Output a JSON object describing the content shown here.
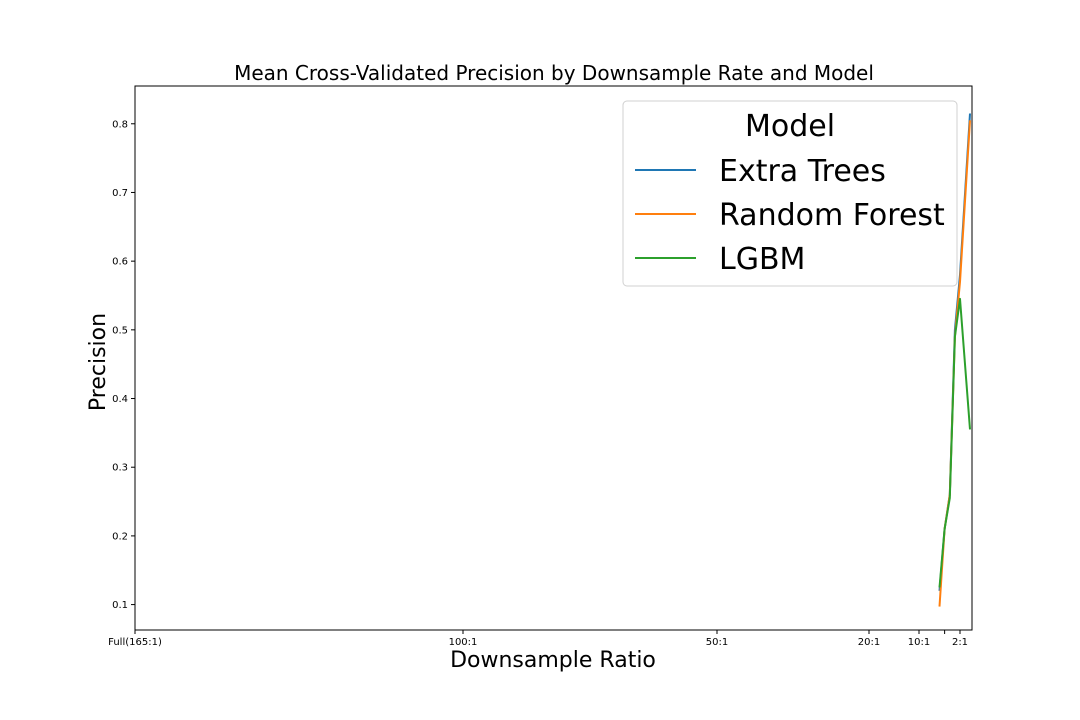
{
  "chart_data": {
    "type": "line",
    "title": "Mean Cross-Validated Precision by Downsample Rate and Model",
    "xlabel": "Downsample Ratio",
    "ylabel": "Precision",
    "xlim": [
      165,
      1
    ],
    "ylim": [
      0.063,
      0.855
    ],
    "x_ticks": [
      {
        "value": 165,
        "label": "Full(165:1)"
      },
      {
        "value": 100,
        "label": "100:1"
      },
      {
        "value": 50,
        "label": "50:1"
      },
      {
        "value": 20,
        "label": "20:1"
      },
      {
        "value": 10,
        "label": "10:1"
      },
      {
        "value": 5,
        "label": ""
      },
      {
        "value": 2,
        "label": "2:1"
      }
    ],
    "y_ticks": [
      0.1,
      0.2,
      0.3,
      0.4,
      0.5,
      0.6,
      0.7,
      0.8
    ],
    "x": [
      6,
      5,
      4,
      3,
      2,
      1
    ],
    "series": [
      {
        "name": "Extra Trees",
        "color": "#1f77b4",
        "values": [
          0.12,
          0.21,
          0.26,
          0.5,
          0.58,
          0.815
        ]
      },
      {
        "name": "Random Forest",
        "color": "#ff7f0e",
        "values": [
          0.097,
          0.21,
          0.26,
          0.49,
          0.57,
          0.805
        ]
      },
      {
        "name": "LGBM",
        "color": "#2ca02c",
        "values": [
          0.125,
          0.21,
          0.255,
          0.49,
          0.545,
          0.355
        ]
      }
    ],
    "legend": {
      "title": "Model",
      "position": "top-right"
    },
    "grid": false
  }
}
